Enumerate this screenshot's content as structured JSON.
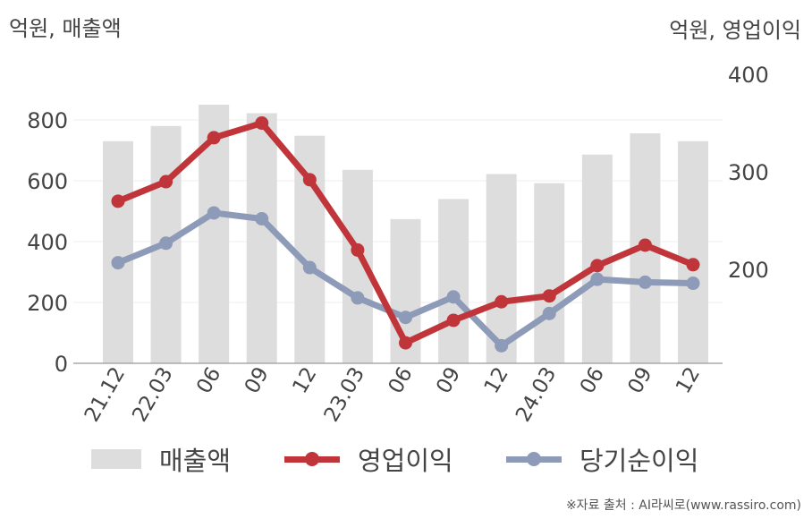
{
  "chart_data": {
    "type": "bar+line",
    "categories": [
      "21.12",
      "22.03",
      "06",
      "09",
      "12",
      "23.03",
      "06",
      "09",
      "12",
      "24.03",
      "06",
      "09",
      "12"
    ],
    "left_axis": {
      "label": "억원, 매출액",
      "ticks": [
        "0",
        "200",
        "400",
        "600",
        "800"
      ],
      "ylim": [
        0,
        950
      ]
    },
    "right_axis": {
      "label": "억원, 영업이익",
      "ticks": [
        "200",
        "300",
        "400"
      ],
      "ylim": [
        104,
        400
      ]
    },
    "series": [
      {
        "name": "매출액",
        "type": "bar",
        "axis": "left",
        "color": "#dddddd",
        "values": [
          730,
          780,
          850,
          822,
          748,
          636,
          474,
          540,
          622,
          592,
          686,
          756,
          730
        ]
      },
      {
        "name": "영업이익",
        "type": "line",
        "axis": "right",
        "color": "#c0353a",
        "values": [
          270,
          290,
          335,
          350,
          292,
          220,
          125,
          148,
          167,
          173,
          204,
          225,
          205
        ]
      },
      {
        "name": "당기순이익",
        "type": "line",
        "axis": "right",
        "color": "#8d9bb8",
        "values": [
          207,
          227,
          258,
          252,
          202,
          171,
          151,
          172,
          122,
          155,
          190,
          187,
          186
        ]
      }
    ],
    "grid": true,
    "legend_position": "bottom"
  },
  "source": "※자료 출처 : AI라씨로(www.rassiro.com)"
}
